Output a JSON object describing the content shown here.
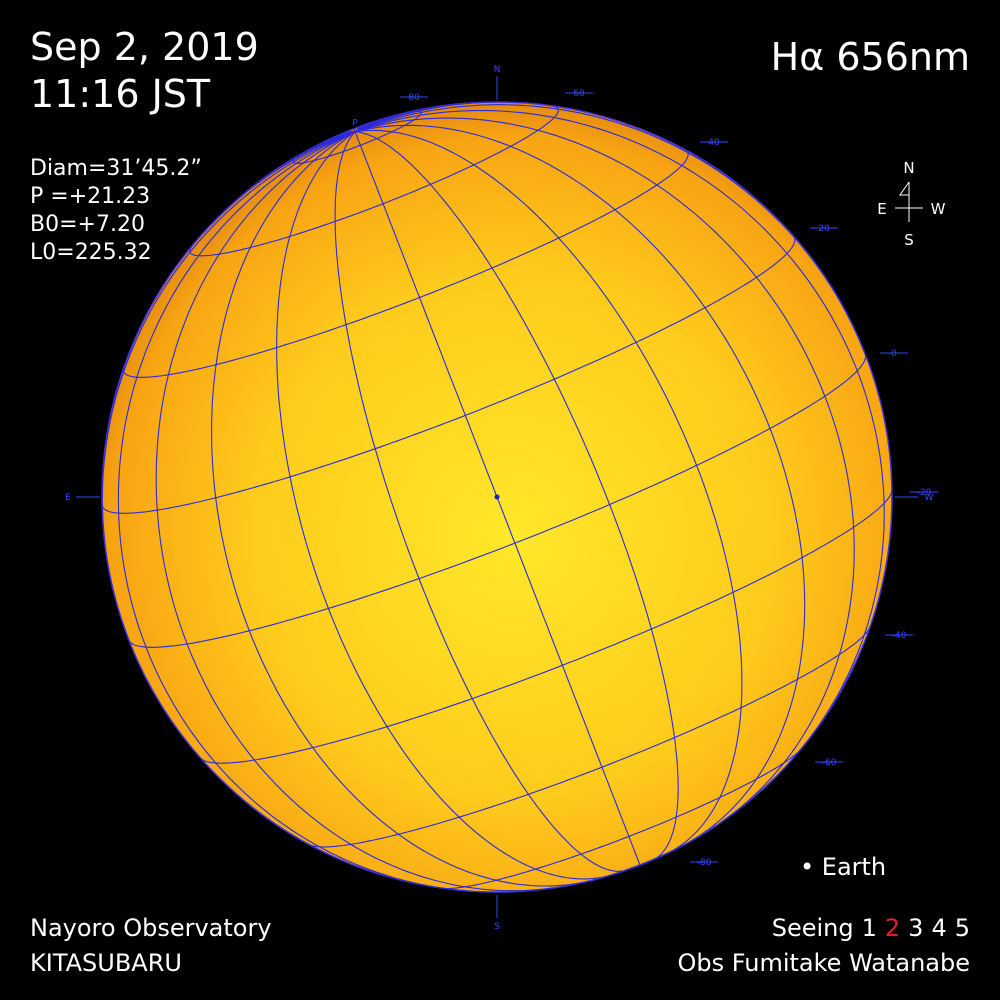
{
  "header": {
    "date": "Sep 2, 2019",
    "time": "11:16 JST",
    "wavelength": "Hα 656nm"
  },
  "parameters": [
    {
      "name": "Diam=",
      "value": "31’45.2”"
    },
    {
      "name": "P  =",
      "value": "+21.23"
    },
    {
      "name": "B0=",
      "value": "+7.20"
    },
    {
      "name": "L0=",
      "value": "225.32"
    }
  ],
  "compass": {
    "north": "N",
    "east": "E",
    "west": "W",
    "south": "S"
  },
  "limb_labels": {
    "north": "N",
    "south": "S",
    "east": "E",
    "west": "W",
    "pole": "P"
  },
  "latitude_labels": [
    "80",
    "60",
    "40",
    "20",
    "0",
    "-20",
    "-40",
    "-60",
    "-80"
  ],
  "legend": "• Earth",
  "footer": {
    "observatory": "Nayoro Observatory",
    "site": "KITASUBARU",
    "seeing_label": "Seeing",
    "seeing_scale": [
      "1",
      "2",
      "3",
      "4",
      "5"
    ],
    "observer": "Obs Fumitake Watanabe"
  }
}
